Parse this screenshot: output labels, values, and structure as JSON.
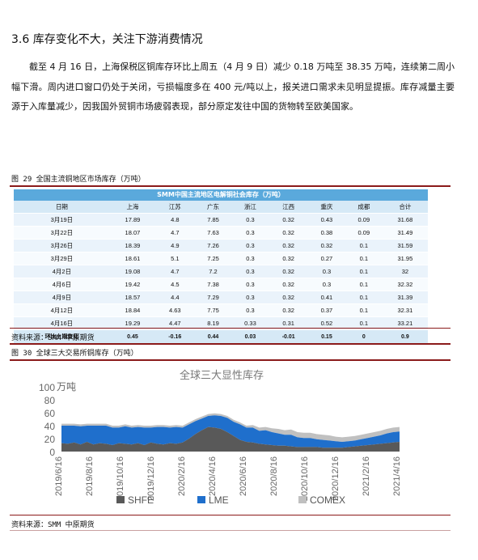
{
  "section": {
    "heading": "3.6 库存变化不大，关注下游消费情况",
    "paragraph": "截至 4 月 16 日，上海保税区铜库存环比上周五（4 月 9 日）减少 0.18 万吨至 38.35 万吨，连续第二周小幅下滑。周内进口窗口仍处于关闭，亏损幅度多在 400 元/吨以上，报关进口需求未见明显提振。库存减量主要源于入库量减少，因我国外贸铜市场疲弱表现，部分原定发往中国的货物转至欧美国家。"
  },
  "figure29": {
    "caption": "图 29 全国主流铜地区市场库存（万吨）",
    "table_title": "SMM中国主流地区电解铜社会库存（万吨）",
    "headers": [
      "日期",
      "上海",
      "江苏",
      "广东",
      "浙江",
      "江西",
      "重庆",
      "成都",
      "合计"
    ],
    "rows": [
      [
        "3月19日",
        "17.89",
        "4.8",
        "7.85",
        "0.3",
        "0.32",
        "0.43",
        "0.09",
        "31.68"
      ],
      [
        "3月22日",
        "18.07",
        "4.7",
        "7.63",
        "0.3",
        "0.32",
        "0.38",
        "0.09",
        "31.49"
      ],
      [
        "3月26日",
        "18.39",
        "4.9",
        "7.26",
        "0.3",
        "0.32",
        "0.32",
        "0.1",
        "31.59"
      ],
      [
        "3月29日",
        "18.61",
        "5.1",
        "7.25",
        "0.3",
        "0.32",
        "0.27",
        "0.1",
        "31.95"
      ],
      [
        "4月2日",
        "19.08",
        "4.7",
        "7.2",
        "0.3",
        "0.32",
        "0.3",
        "0.1",
        "32"
      ],
      [
        "4月6日",
        "19.42",
        "4.5",
        "7.38",
        "0.3",
        "0.32",
        "0.3",
        "0.1",
        "32.32"
      ],
      [
        "4月9日",
        "18.57",
        "4.4",
        "7.29",
        "0.3",
        "0.32",
        "0.41",
        "0.1",
        "31.39"
      ],
      [
        "4月12日",
        "18.84",
        "4.63",
        "7.75",
        "0.3",
        "0.32",
        "0.37",
        "0.1",
        "32.31"
      ],
      [
        "4月16日",
        "19.29",
        "4.47",
        "8.19",
        "0.33",
        "0.31",
        "0.52",
        "0.1",
        "33.21"
      ]
    ],
    "total_row": [
      "环比上期变化",
      "0.45",
      "-0.16",
      "0.44",
      "0.03",
      "-0.01",
      "0.15",
      "0",
      "0.9"
    ],
    "source": "资料来源：SMM 中原期货"
  },
  "figure30": {
    "caption": "图 30 全球三大交易所铜库存（万吨）",
    "source": "资料来源：SMM  中原期货"
  },
  "chart_data": {
    "type": "area",
    "title": "全球三大显性库存",
    "ylabel": "万吨",
    "ylim": [
      0,
      100
    ],
    "yticks": [
      0,
      20,
      40,
      60,
      80,
      100
    ],
    "x_ticks": [
      "2019/6/16",
      "2019/8/16",
      "2019/10/16",
      "2019/12/16",
      "2020/2/16",
      "2020/4/16",
      "2020/6/16",
      "2020/8/16",
      "2020/10/16",
      "2020/12/16",
      "2021/2/16",
      "2021/4/16"
    ],
    "stacked": true,
    "legend_position": "bottom",
    "series": [
      {
        "name": "SHFE",
        "color": "#595959",
        "values": [
          13,
          12,
          14,
          11,
          15,
          11,
          13,
          12,
          10,
          13,
          12,
          11,
          13,
          10,
          14,
          12,
          11,
          13,
          12,
          14,
          20,
          27,
          33,
          38,
          37,
          35,
          30,
          24,
          18,
          15,
          14,
          12,
          11,
          10,
          9,
          9,
          8,
          7,
          7,
          7,
          7,
          6,
          6,
          6,
          6,
          7,
          8,
          9,
          10,
          11,
          12,
          13,
          14,
          15
        ]
      },
      {
        "name": "LME",
        "color": "#1f6fcc",
        "values": [
          27,
          28,
          26,
          28,
          25,
          29,
          27,
          28,
          27,
          24,
          27,
          26,
          25,
          27,
          23,
          26,
          27,
          24,
          26,
          23,
          22,
          20,
          18,
          17,
          19,
          20,
          22,
          22,
          24,
          22,
          23,
          20,
          22,
          20,
          19,
          17,
          18,
          15,
          14,
          14,
          12,
          12,
          11,
          10,
          9,
          9,
          9,
          10,
          11,
          12,
          13,
          15,
          16,
          16
        ]
      },
      {
        "name": "COMEX",
        "color": "#c0c0c0",
        "values": [
          3,
          3,
          3,
          3,
          3,
          3,
          3,
          3,
          3,
          3,
          3,
          3,
          3,
          3,
          3,
          3,
          3,
          3,
          3,
          3,
          3,
          3,
          3,
          3,
          3,
          3,
          3,
          3,
          3,
          3,
          4,
          5,
          5,
          6,
          7,
          7,
          8,
          8,
          8,
          8,
          8,
          8,
          8,
          7,
          7,
          7,
          7,
          7,
          7,
          7,
          7,
          7,
          7,
          7
        ]
      }
    ]
  }
}
